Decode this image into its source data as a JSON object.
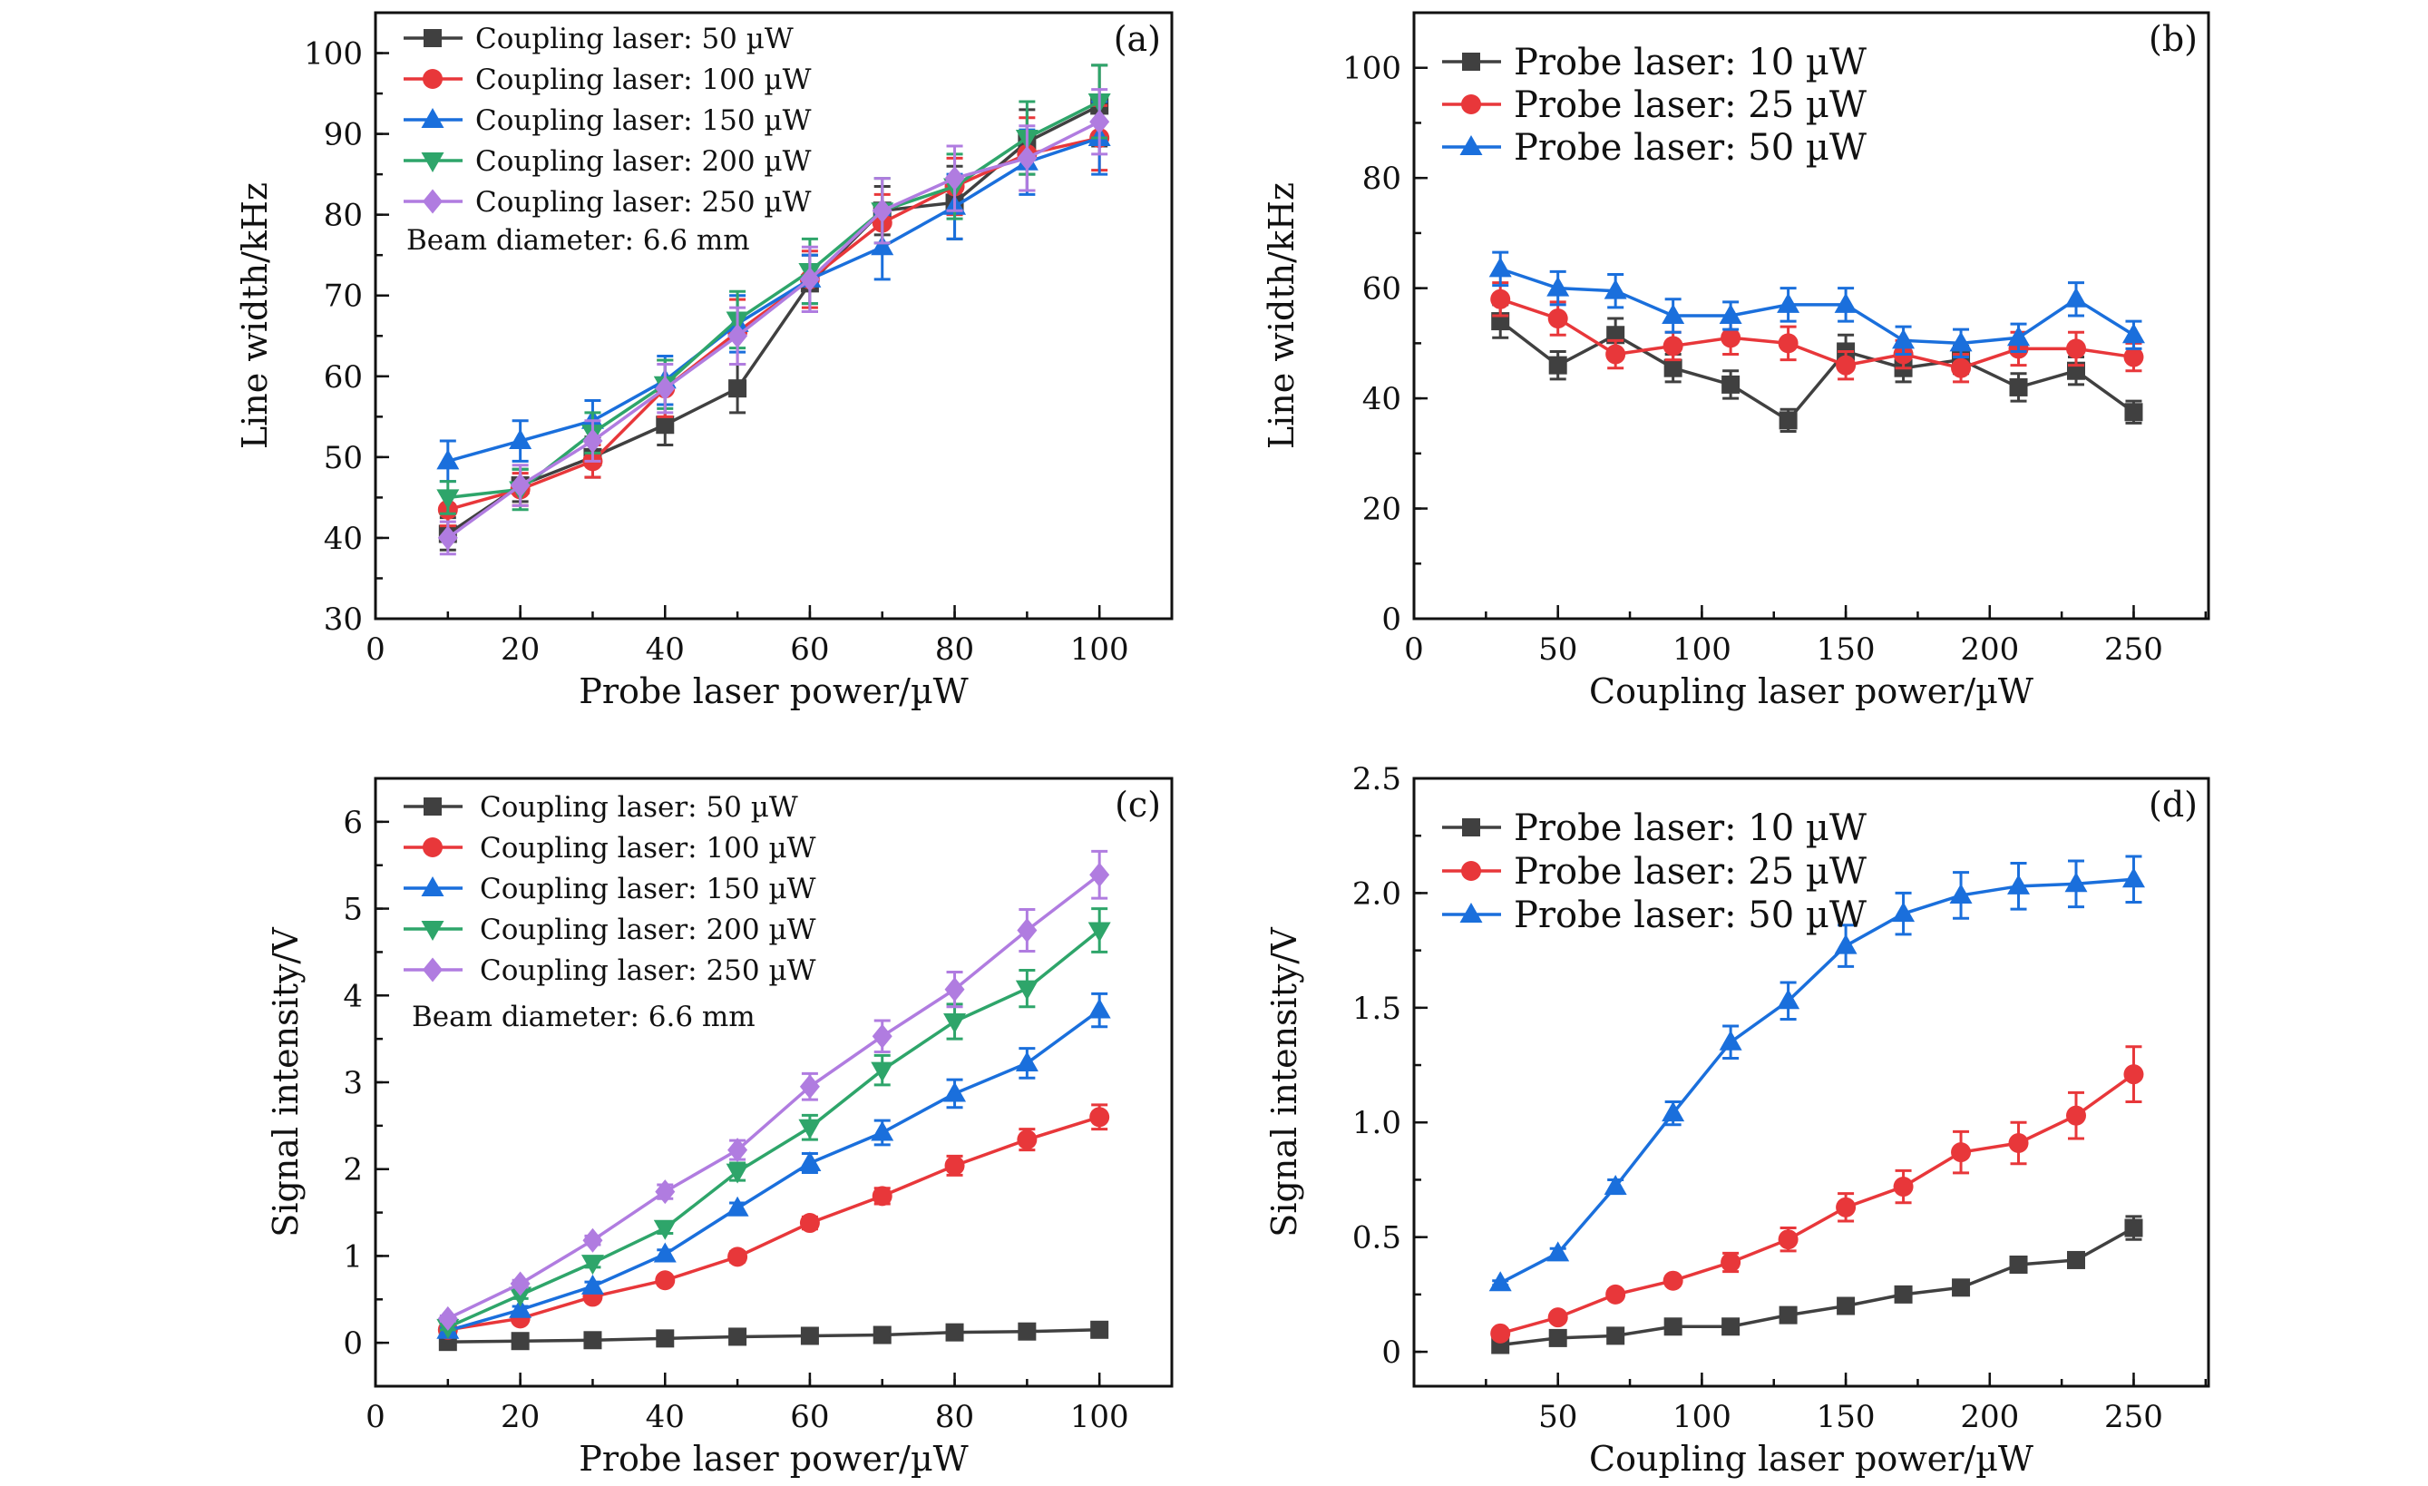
{
  "chart_data": [
    {
      "type": "line",
      "panel_label": "(a)",
      "xlabel": "Probe laser power/µW",
      "ylabel": "Line width/kHz",
      "xlim": [
        0,
        110
      ],
      "ylim": [
        30,
        105
      ],
      "xticks": [
        0,
        20,
        40,
        60,
        80,
        100
      ],
      "yticks": [
        30,
        40,
        50,
        60,
        70,
        80,
        90,
        100
      ],
      "grid": false,
      "legend": "top-left",
      "annotation": "Beam diameter: 6.6 mm",
      "x": [
        10,
        20,
        30,
        40,
        50,
        60,
        70,
        80,
        90,
        100
      ],
      "series": [
        {
          "name": "Coupling laser: 50 µW",
          "color": "#404040",
          "marker": "square",
          "values": [
            40.5,
            46.5,
            50,
            54,
            58.5,
            71.5,
            80.5,
            81.5,
            89,
            93.5
          ],
          "errors": [
            2,
            2,
            2.5,
            2.5,
            3,
            3.5,
            3,
            4.5,
            4,
            5
          ]
        },
        {
          "name": "Coupling laser: 100 µW",
          "color": "#e8373a",
          "marker": "circle",
          "values": [
            43.5,
            46,
            49.5,
            58.5,
            65.5,
            72,
            79,
            83.5,
            87.5,
            89.5
          ],
          "errors": [
            2,
            2,
            2,
            3.5,
            4,
            3.5,
            3.5,
            3.5,
            4.5,
            4
          ]
        },
        {
          "name": "Coupling laser: 150 µW",
          "color": "#1a6fdc",
          "marker": "triangle-up",
          "values": [
            49.5,
            52,
            54.5,
            59.5,
            66.5,
            72,
            76,
            81,
            86.5,
            89.5
          ],
          "errors": [
            2.5,
            2.5,
            2.5,
            3,
            3.5,
            3,
            4,
            4,
            4,
            4.5
          ]
        },
        {
          "name": "Coupling laser: 200 µW",
          "color": "#2ea56a",
          "marker": "triangle-down",
          "values": [
            45,
            46,
            53,
            59,
            67,
            73,
            80.5,
            83.5,
            89.5,
            94
          ],
          "errors": [
            2,
            2.5,
            2.5,
            3,
            3.5,
            4,
            4,
            4,
            4.5,
            4.5
          ]
        },
        {
          "name": "Coupling laser: 250 µW",
          "color": "#b07ce0",
          "marker": "diamond",
          "values": [
            40,
            46.5,
            52,
            58.5,
            65,
            72,
            80.5,
            84.5,
            87,
            91.5
          ],
          "errors": [
            2,
            2.5,
            2.5,
            3,
            3.5,
            4,
            4,
            4,
            4,
            4
          ]
        }
      ]
    },
    {
      "type": "line",
      "panel_label": "(b)",
      "xlabel": "Coupling laser power/µW",
      "ylabel": "Line width/kHz",
      "xlim": [
        0,
        276
      ],
      "ylim": [
        0,
        110
      ],
      "xticks": [
        0,
        50,
        100,
        150,
        200,
        250
      ],
      "yticks": [
        0,
        20,
        40,
        60,
        80,
        100
      ],
      "grid": false,
      "legend": "top-left",
      "x": [
        30,
        50,
        70,
        90,
        110,
        130,
        150,
        170,
        190,
        210,
        230,
        250
      ],
      "series": [
        {
          "name": "Probe laser: 10 µW",
          "color": "#404040",
          "marker": "square",
          "values": [
            54,
            46,
            51.5,
            45.5,
            42.5,
            36,
            48.5,
            45.5,
            47,
            42,
            45,
            37.5
          ],
          "errors": [
            3,
            2.5,
            3,
            2.5,
            2.5,
            2,
            3,
            2.5,
            2.5,
            2.5,
            2.5,
            2
          ]
        },
        {
          "name": "Probe laser: 25 µW",
          "color": "#e8373a",
          "marker": "circle",
          "values": [
            58,
            54.5,
            48,
            49.5,
            51,
            50,
            46,
            48,
            45.5,
            49,
            49,
            47.5
          ],
          "errors": [
            3,
            3,
            2.5,
            2.5,
            3,
            3,
            2.5,
            2.5,
            2.5,
            3,
            3,
            2.5
          ]
        },
        {
          "name": "Probe laser: 50 µW",
          "color": "#1a6fdc",
          "marker": "triangle-up",
          "values": [
            63.5,
            60,
            59.5,
            55,
            55,
            57,
            57,
            50.5,
            50,
            51,
            58,
            51.5
          ],
          "errors": [
            3,
            3,
            3,
            3,
            2.5,
            3,
            3,
            2.5,
            2.5,
            2.5,
            3,
            2.5
          ]
        }
      ]
    },
    {
      "type": "line",
      "panel_label": "(c)",
      "xlabel": "Probe laser power/µW",
      "ylabel": "Signal intensity/V",
      "xlim": [
        0,
        110
      ],
      "ylim": [
        -0.5,
        6.5
      ],
      "xticks": [
        0,
        20,
        40,
        60,
        80,
        100
      ],
      "yticks": [
        0,
        1,
        2,
        3,
        4,
        5,
        6
      ],
      "grid": false,
      "legend": "top-left",
      "annotation": "Beam diameter: 6.6 mm",
      "x": [
        10,
        20,
        30,
        40,
        50,
        60,
        70,
        80,
        90,
        100
      ],
      "series": [
        {
          "name": "Coupling laser: 50 µW",
          "color": "#404040",
          "marker": "square",
          "values": [
            0.01,
            0.02,
            0.03,
            0.05,
            0.07,
            0.08,
            0.09,
            0.12,
            0.13,
            0.15
          ],
          "errors": [
            0.01,
            0.01,
            0.01,
            0.01,
            0.01,
            0.01,
            0.01,
            0.01,
            0.01,
            0.01
          ]
        },
        {
          "name": "Coupling laser: 100 µW",
          "color": "#e8373a",
          "marker": "circle",
          "values": [
            0.15,
            0.28,
            0.53,
            0.72,
            0.99,
            1.38,
            1.69,
            2.04,
            2.34,
            2.6
          ],
          "errors": [
            0.03,
            0.04,
            0.05,
            0.05,
            0.06,
            0.07,
            0.09,
            0.11,
            0.12,
            0.14
          ]
        },
        {
          "name": "Coupling laser: 150 µW",
          "color": "#1a6fdc",
          "marker": "triangle-up",
          "values": [
            0.14,
            0.38,
            0.65,
            1.02,
            1.55,
            2.07,
            2.42,
            2.87,
            3.22,
            3.83
          ],
          "errors": [
            0.03,
            0.04,
            0.05,
            0.05,
            0.06,
            0.11,
            0.14,
            0.16,
            0.17,
            0.19
          ]
        },
        {
          "name": "Coupling laser: 200 µW",
          "color": "#2ea56a",
          "marker": "triangle-down",
          "values": [
            0.18,
            0.55,
            0.92,
            1.32,
            1.97,
            2.48,
            3.14,
            3.7,
            4.08,
            4.75
          ],
          "errors": [
            0.03,
            0.04,
            0.05,
            0.06,
            0.1,
            0.14,
            0.17,
            0.2,
            0.21,
            0.25
          ]
        },
        {
          "name": "Coupling laser: 250 µW",
          "color": "#b07ce0",
          "marker": "diamond",
          "values": [
            0.28,
            0.68,
            1.18,
            1.74,
            2.22,
            2.95,
            3.53,
            4.07,
            4.75,
            5.39
          ],
          "errors": [
            0.03,
            0.04,
            0.05,
            0.08,
            0.11,
            0.15,
            0.18,
            0.2,
            0.24,
            0.27
          ]
        }
      ]
    },
    {
      "type": "line",
      "panel_label": "(d)",
      "xlabel": "Coupling laser power/µW",
      "ylabel": "Signal intensity/V",
      "xlim": [
        0,
        276
      ],
      "ylim": [
        -0.15,
        2.5
      ],
      "xticks": [
        50,
        100,
        150,
        200,
        250
      ],
      "yticks": [
        0,
        0.5,
        1.0,
        1.5,
        2.0,
        2.5
      ],
      "ytick_labels": [
        "0",
        "0.5",
        "1.0",
        "1.5",
        "2.0",
        "2.5"
      ],
      "grid": false,
      "legend": "top-left",
      "x": [
        30,
        50,
        70,
        90,
        110,
        130,
        150,
        170,
        190,
        210,
        230,
        250
      ],
      "series": [
        {
          "name": "Probe laser: 10 µW",
          "color": "#404040",
          "marker": "square",
          "values": [
            0.03,
            0.06,
            0.07,
            0.11,
            0.11,
            0.16,
            0.2,
            0.25,
            0.28,
            0.38,
            0.4,
            0.54
          ],
          "errors": [
            0.01,
            0.01,
            0.01,
            0.01,
            0.01,
            0.01,
            0.01,
            0.02,
            0.02,
            0.03,
            0.03,
            0.05
          ]
        },
        {
          "name": "Probe laser: 25 µW",
          "color": "#e8373a",
          "marker": "circle",
          "values": [
            0.08,
            0.15,
            0.25,
            0.31,
            0.39,
            0.49,
            0.63,
            0.72,
            0.87,
            0.91,
            1.03,
            1.21
          ],
          "errors": [
            0.01,
            0.01,
            0.02,
            0.02,
            0.04,
            0.05,
            0.06,
            0.07,
            0.09,
            0.09,
            0.1,
            0.12
          ]
        },
        {
          "name": "Probe laser: 50 µW",
          "color": "#1a6fdc",
          "marker": "triangle-up",
          "values": [
            0.3,
            0.43,
            0.72,
            1.04,
            1.35,
            1.53,
            1.77,
            1.91,
            1.99,
            2.03,
            2.04,
            2.06
          ],
          "errors": [
            0.01,
            0.02,
            0.03,
            0.05,
            0.07,
            0.08,
            0.09,
            0.09,
            0.1,
            0.1,
            0.1,
            0.1
          ]
        }
      ]
    }
  ]
}
